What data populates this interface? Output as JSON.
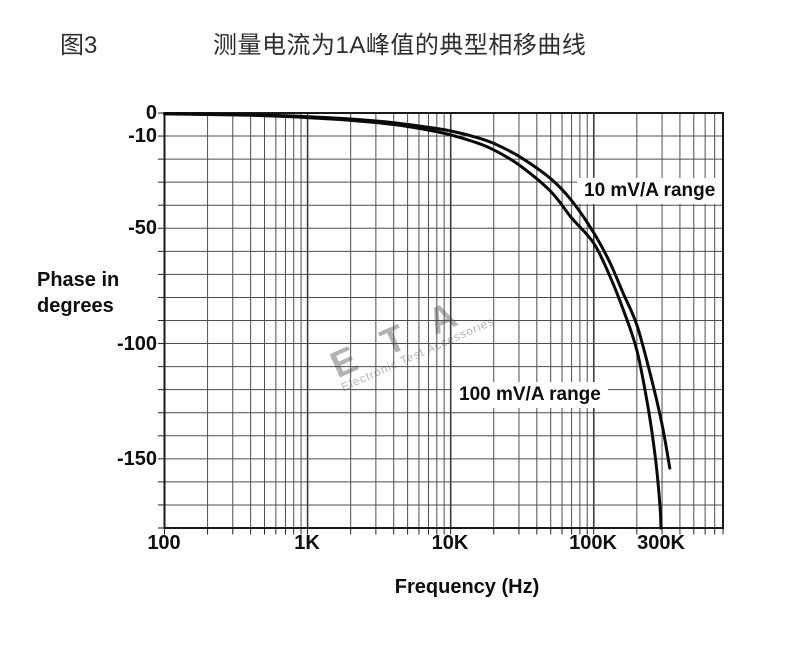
{
  "figure": {
    "label": "图3",
    "title": "测量电流为1A峰值的典型相移曲线"
  },
  "watermark": {
    "brand": "E T A",
    "tagline": "Electronic Test Accessories",
    "color": "#b5b2b2"
  },
  "chart_data": {
    "type": "line",
    "title": "测量电流为1A峰值的典型相移曲线",
    "xlabel": "Frequency (Hz)",
    "ylabel": "Phase in\ndegrees",
    "x_scale": "log",
    "x_range": [
      100,
      800000
    ],
    "y_range": [
      -180,
      0
    ],
    "y_grid_step": 10,
    "grid": true,
    "legend_position": "inline-annotations",
    "x_ticks": [
      {
        "label": "100",
        "value": 100
      },
      {
        "label": "1K",
        "value": 1000
      },
      {
        "label": "10K",
        "value": 10000
      },
      {
        "label": "100K",
        "value": 100000
      },
      {
        "label": "300K",
        "value": 300000
      }
    ],
    "y_ticks": [
      {
        "label": "0",
        "value": 0
      },
      {
        "label": "-10",
        "value": -10
      },
      {
        "label": "-50",
        "value": -50
      },
      {
        "label": "-100",
        "value": -100
      },
      {
        "label": "-150",
        "value": -150
      }
    ],
    "series": [
      {
        "name": "10 mV/A range",
        "color": "#0a0a0a",
        "points": [
          [
            100,
            -0.3
          ],
          [
            200,
            -0.5
          ],
          [
            400,
            -0.8
          ],
          [
            700,
            -1.2
          ],
          [
            1000,
            -1.6
          ],
          [
            2000,
            -2.6
          ],
          [
            4000,
            -4.2
          ],
          [
            7000,
            -6.2
          ],
          [
            10000,
            -7.8
          ],
          [
            15000,
            -10.5
          ],
          [
            20000,
            -13.2
          ],
          [
            30000,
            -18.8
          ],
          [
            50000,
            -28.5
          ],
          [
            70000,
            -38
          ],
          [
            100000,
            -52
          ],
          [
            130000,
            -65
          ],
          [
            160000,
            -78
          ],
          [
            200000,
            -92
          ],
          [
            250000,
            -114
          ],
          [
            300000,
            -135
          ],
          [
            340000,
            -154
          ]
        ]
      },
      {
        "name": "100 mV/A range",
        "color": "#0a0a0a",
        "points": [
          [
            100,
            -0.4
          ],
          [
            200,
            -0.65
          ],
          [
            400,
            -1.0
          ],
          [
            700,
            -1.5
          ],
          [
            1000,
            -2.0
          ],
          [
            2000,
            -3.2
          ],
          [
            4000,
            -5.0
          ],
          [
            7000,
            -7.4
          ],
          [
            10000,
            -9.5
          ],
          [
            15000,
            -12.8
          ],
          [
            20000,
            -16
          ],
          [
            30000,
            -22.5
          ],
          [
            50000,
            -34
          ],
          [
            70000,
            -45.5
          ],
          [
            100000,
            -56.5
          ],
          [
            130000,
            -71
          ],
          [
            160000,
            -85
          ],
          [
            200000,
            -103
          ],
          [
            240000,
            -128
          ],
          [
            270000,
            -150
          ],
          [
            290000,
            -170
          ],
          [
            295000,
            -180
          ]
        ]
      }
    ],
    "annotations": [
      {
        "text": "10 mV/A range",
        "attached_series": "10 mV/A range"
      },
      {
        "text": "100 mV/A range",
        "attached_series": "100 mV/A range"
      }
    ]
  }
}
